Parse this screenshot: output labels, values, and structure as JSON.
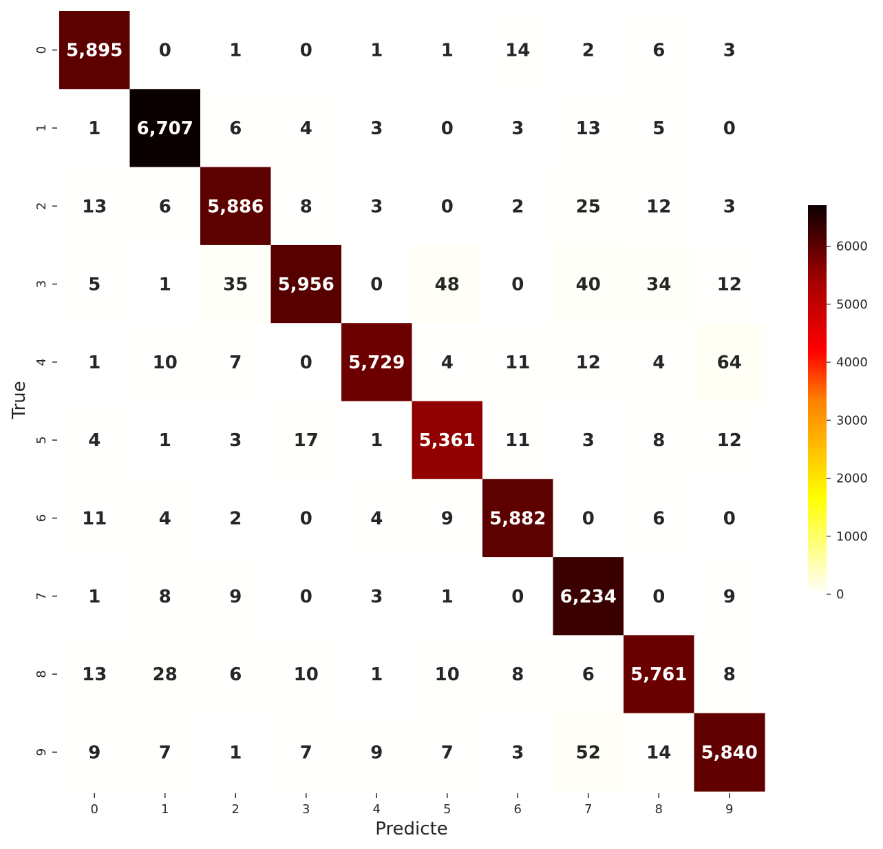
{
  "chart_data": {
    "type": "heatmap",
    "xlabel": "Predicte",
    "ylabel": "True",
    "x_categories": [
      "0",
      "1",
      "2",
      "3",
      "4",
      "5",
      "6",
      "7",
      "8",
      "9"
    ],
    "y_categories": [
      "0",
      "1",
      "2",
      "3",
      "4",
      "5",
      "6",
      "7",
      "8",
      "9"
    ],
    "matrix": [
      [
        5895,
        0,
        1,
        0,
        1,
        1,
        14,
        2,
        6,
        3
      ],
      [
        1,
        6707,
        6,
        4,
        3,
        0,
        3,
        13,
        5,
        0
      ],
      [
        13,
        6,
        5886,
        8,
        3,
        0,
        2,
        25,
        12,
        3
      ],
      [
        5,
        1,
        35,
        5956,
        0,
        48,
        0,
        40,
        34,
        12
      ],
      [
        1,
        10,
        7,
        0,
        5729,
        4,
        11,
        12,
        4,
        64
      ],
      [
        4,
        1,
        3,
        17,
        1,
        5361,
        11,
        3,
        8,
        12
      ],
      [
        11,
        4,
        2,
        0,
        4,
        9,
        5882,
        0,
        6,
        0
      ],
      [
        1,
        8,
        9,
        0,
        3,
        1,
        0,
        6234,
        0,
        9
      ],
      [
        13,
        28,
        6,
        10,
        1,
        10,
        8,
        6,
        5761,
        8
      ],
      [
        9,
        7,
        1,
        7,
        9,
        7,
        3,
        52,
        14,
        5840
      ]
    ],
    "annotation_format": "thousands-comma",
    "colormap": "hot_r",
    "colorbar": {
      "min": 0,
      "max": 6707,
      "ticks": [
        "0",
        "1000",
        "2000",
        "3000",
        "4000",
        "5000",
        "6000"
      ]
    },
    "colors": {
      "dark_text": "#262626",
      "light_text": "#ffffff"
    },
    "grid": false
  }
}
